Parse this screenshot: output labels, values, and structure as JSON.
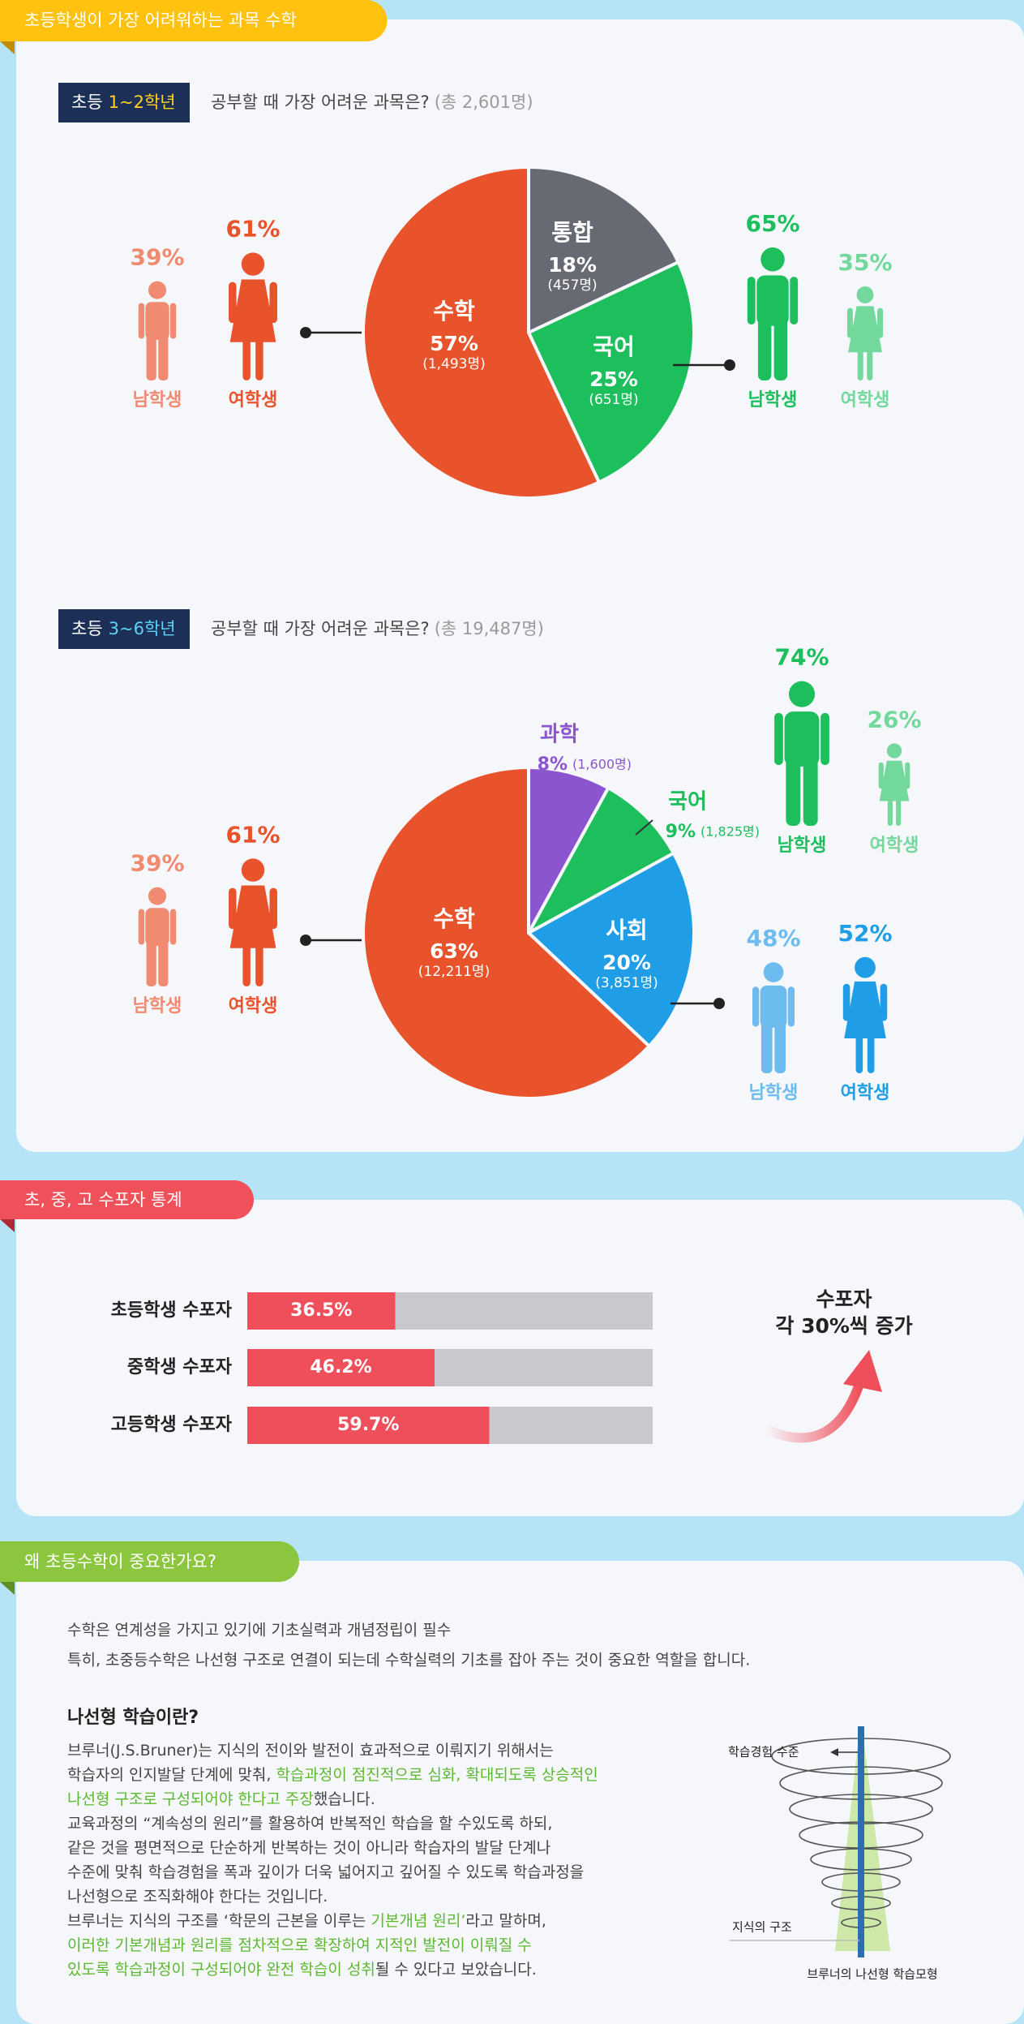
{
  "tags": [
    "초등학생이 가장 어려워하는 과목 수학",
    "초, 중, 고 수포자 통계",
    "왜 초등수학이 중요한가요?"
  ],
  "chart_data": [
    {
      "type": "pie",
      "badge_prefix": "초등",
      "badge_grade": "1~2학년",
      "badge_color": "#ffd21f",
      "title": "공부할 때 가장 어려운 과목은?",
      "total_label": "(총 2,601명)",
      "categories": [
        "통합",
        "국어",
        "수학"
      ],
      "values": [
        18,
        25,
        57
      ],
      "value_labels": [
        "18%",
        "25%",
        "57%"
      ],
      "count_labels": [
        "(457명)",
        "(651명)",
        "(1,493명)"
      ],
      "colors": [
        "#686a73",
        "#1dbf5d",
        "#e9532c"
      ],
      "genders": [
        {
          "labels": [
            "남학생",
            "여학생"
          ],
          "values": [
            39,
            61
          ],
          "value_labels": [
            "39%",
            "61%"
          ],
          "colors": [
            "#f08b71",
            "#e9532c"
          ]
        },
        {
          "labels": [
            "남학생",
            "여학생"
          ],
          "values": [
            65,
            35
          ],
          "value_labels": [
            "65%",
            "35%"
          ],
          "colors": [
            "#1dbf5d",
            "#72d89b"
          ]
        }
      ]
    },
    {
      "type": "pie",
      "badge_prefix": "초등",
      "badge_grade": "3~6학년",
      "badge_color": "#5fd3f7",
      "title": "공부할 때 가장 어려운 과목은?",
      "total_label": "(총 19,487명)",
      "categories": [
        "과학",
        "국어",
        "사회",
        "수학"
      ],
      "values": [
        8,
        9,
        20,
        63
      ],
      "value_labels": [
        "8%",
        "9%",
        "20%",
        "63%"
      ],
      "count_labels": [
        "(1,600명)",
        "(1,825명)",
        "(3,851명)",
        "(12,211명)"
      ],
      "colors": [
        "#8b55cf",
        "#1dbf5d",
        "#1f9de6",
        "#e9532c"
      ],
      "genders": [
        {
          "labels": [
            "남학생",
            "여학생"
          ],
          "values": [
            39,
            61
          ],
          "value_labels": [
            "39%",
            "61%"
          ],
          "colors": [
            "#f08b71",
            "#e9532c"
          ]
        },
        {
          "labels": [
            "남학생",
            "여학생"
          ],
          "values": [
            74,
            26
          ],
          "value_labels": [
            "74%",
            "26%"
          ],
          "colors": [
            "#1dbf5d",
            "#72d89b"
          ]
        },
        {
          "labels": [
            "남학생",
            "여학생"
          ],
          "values": [
            48,
            52
          ],
          "value_labels": [
            "48%",
            "52%"
          ],
          "colors": [
            "#6cbcef",
            "#1f9de6"
          ]
        }
      ]
    },
    {
      "type": "bar",
      "orientation": "horizontal",
      "categories": [
        "초등학생 수포자",
        "중학생 수포자",
        "고등학생 수포자"
      ],
      "values": [
        36.5,
        46.2,
        59.7
      ],
      "value_labels": [
        "36.5%",
        "46.2%",
        "59.7%"
      ],
      "xlim": [
        0,
        100
      ],
      "color": "#ef4f5b",
      "track_color": "#c8c8cd",
      "annotation": [
        "수포자",
        "각 30%씩 증가"
      ]
    }
  ],
  "intro": [
    "수학은 연계성을 가지고 있기에 기초실력과 개념정립이 필수",
    "특히, 초중등수학은 나선형 구조로 연결이 되는데 수학실력의 기초를 잡아 주는 것이 중요한 역할을 합니다."
  ],
  "spiral": {
    "heading": "나선형 학습이란?",
    "lines": [
      [
        "브루너(J.S.Bruner)는 지식의 전이와 발전이 효과적으로 이뤄지기 위해서는"
      ],
      [
        "학습자의 인지발달 단계에 맞춰, ",
        {
          "em": "학습과정이 점진적으로 심화, 확대되도록 상승적인"
        }
      ],
      [
        {
          "em": "나선형 구조로 구성되어야 한다고 주장"
        },
        "했습니다."
      ],
      [
        "교육과정의 “계속성의 원리”를 활용하여 반복적인 학습을 할 수있도록 하되,"
      ],
      [
        "같은 것을 평면적으로 단순하게 반복하는 것이 아니라 학습자의 발달 단계나"
      ],
      [
        "수준에 맞춰 학습경험을 폭과 깊이가 더욱 넓어지고 깊어질 수 있도록 학습과정을"
      ],
      [
        "나선형으로 조직화해야 한다는 것입니다."
      ],
      [
        "브루너는 지식의 구조를 ‘학문의 근본을 이루는 ",
        {
          "em": "기본개념 원리’"
        },
        "라고 말하며,"
      ],
      [
        {
          "em": "이러한 기본개념과 원리를 점차적으로 확장하여 지적인 발전이 이뤄질 수"
        }
      ],
      [
        {
          "em": "있도록 학습과정이 구성되어야 완전 학습이 성취"
        },
        "될 수 있다고 보았습니다."
      ]
    ],
    "diagram": {
      "level_label": "학습경험 수준",
      "structure_label": "지식의 구조",
      "caption": "브루너의 나선형 학습모형"
    }
  }
}
